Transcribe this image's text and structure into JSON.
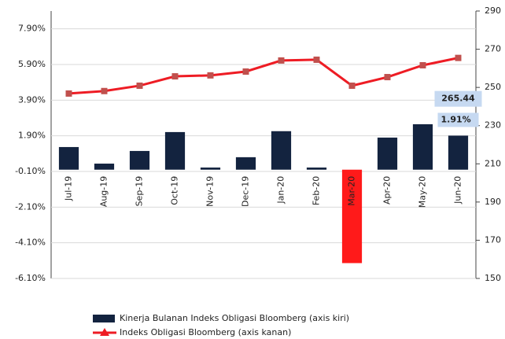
{
  "chart_data": {
    "type": "bar",
    "categories": [
      "Jul-19",
      "Aug-19",
      "Sep-19",
      "Oct-19",
      "Nov-19",
      "Dec-19",
      "Jan-20",
      "Feb-20",
      "Mar-20",
      "Apr-20",
      "May-20",
      "Jun-20"
    ],
    "series": [
      {
        "name": "Kinerja Bulanan Indeks Obligasi Bloomberg (axis kiri)",
        "type": "bar",
        "color": "#13233f",
        "colors": [
          "#13233f",
          "#13233f",
          "#13233f",
          "#13233f",
          "#13233f",
          "#13233f",
          "#13233f",
          "#13233f",
          "#ff1a1a",
          "#13233f",
          "#13233f",
          "#13233f"
        ],
        "values": [
          1.27,
          0.34,
          1.05,
          2.11,
          0.12,
          0.7,
          2.16,
          0.12,
          -5.24,
          1.8,
          2.55,
          1.91
        ],
        "value_labels": [
          null,
          null,
          null,
          null,
          null,
          null,
          null,
          null,
          null,
          null,
          null,
          "1.91%"
        ]
      },
      {
        "name": "Indeks Obligasi Bloomberg (axis kanan)",
        "type": "line",
        "axis": "y2",
        "color": "#ee1c24",
        "marker_color": "#c0504d",
        "values": [
          246.8,
          248.1,
          250.9,
          255.8,
          256.3,
          258.3,
          264.1,
          264.5,
          250.9,
          255.4,
          261.6,
          265.44
        ],
        "value_labels": [
          null,
          null,
          null,
          null,
          null,
          null,
          null,
          null,
          null,
          null,
          null,
          "265.44"
        ]
      }
    ],
    "ylim": [
      -6.1,
      8.9
    ],
    "yticks": [
      {
        "value": 7.9,
        "label": "7.90%"
      },
      {
        "value": 5.9,
        "label": "5.90%"
      },
      {
        "value": 3.9,
        "label": "3.90%"
      },
      {
        "value": 1.9,
        "label": "1.90%"
      },
      {
        "value": -0.1,
        "label": "-0.10%"
      },
      {
        "value": -2.1,
        "label": "-2.10%"
      },
      {
        "value": -4.1,
        "label": "-4.10%"
      },
      {
        "value": -6.1,
        "label": "-6.10%"
      }
    ],
    "y2lim": [
      150,
      290
    ],
    "y2ticks": [
      290,
      270,
      250,
      230,
      210,
      190,
      170,
      150
    ],
    "grid": true
  }
}
